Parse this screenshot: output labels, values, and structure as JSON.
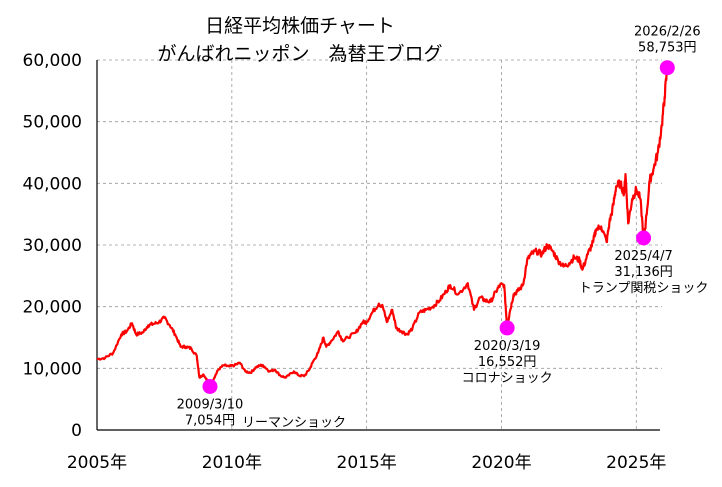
{
  "chart_data": {
    "type": "line",
    "title_lines": [
      "日経平均株価チャート",
      "がんばれニッポン　為替王ブログ"
    ],
    "ylim": [
      0,
      60000
    ],
    "y_ticks": [
      {
        "value": 0,
        "label": "0"
      },
      {
        "value": 10000,
        "label": "10,000"
      },
      {
        "value": 20000,
        "label": "20,000"
      },
      {
        "value": 30000,
        "label": "30,000"
      },
      {
        "value": 40000,
        "label": "40,000"
      },
      {
        "value": 50000,
        "label": "50,000"
      },
      {
        "value": 60000,
        "label": "60,000"
      }
    ],
    "xlim": [
      2005.0,
      2026.25
    ],
    "x_ticks": [
      {
        "value": 2005,
        "label": "2005年"
      },
      {
        "value": 2010,
        "label": "2010年"
      },
      {
        "value": 2015,
        "label": "2015年"
      },
      {
        "value": 2020,
        "label": "2020年"
      },
      {
        "value": 2025,
        "label": "2025年"
      }
    ],
    "line_color": "#ff0000",
    "marker_color": "#ff00ff",
    "series": [
      {
        "name": "日経平均株価",
        "x": [
          2005.0,
          2005.3,
          2005.6,
          2005.9,
          2006.1,
          2006.3,
          2006.45,
          2006.7,
          2006.9,
          2007.1,
          2007.3,
          2007.5,
          2007.7,
          2007.9,
          2008.1,
          2008.3,
          2008.5,
          2008.7,
          2008.8,
          2008.95,
          2009.1,
          2009.19,
          2009.35,
          2009.5,
          2009.7,
          2009.9,
          2010.1,
          2010.3,
          2010.5,
          2010.7,
          2010.9,
          2011.1,
          2011.2,
          2011.4,
          2011.6,
          2011.8,
          2012.0,
          2012.3,
          2012.5,
          2012.7,
          2012.9,
          2013.0,
          2013.2,
          2013.4,
          2013.5,
          2013.7,
          2013.95,
          2014.1,
          2014.3,
          2014.6,
          2014.85,
          2015.0,
          2015.2,
          2015.45,
          2015.6,
          2015.75,
          2015.95,
          2016.1,
          2016.3,
          2016.5,
          2016.7,
          2016.95,
          2017.2,
          2017.45,
          2017.7,
          2017.95,
          2018.1,
          2018.4,
          2018.75,
          2018.98,
          2019.2,
          2019.4,
          2019.6,
          2019.8,
          2019.95,
          2020.1,
          2020.21,
          2020.3,
          2020.45,
          2020.6,
          2020.8,
          2020.95,
          2021.1,
          2021.3,
          2021.5,
          2021.7,
          2021.9,
          2022.1,
          2022.3,
          2022.5,
          2022.7,
          2022.9,
          2023.0,
          2023.2,
          2023.4,
          2023.5,
          2023.7,
          2023.9,
          2024.0,
          2024.15,
          2024.25,
          2024.4,
          2024.55,
          2024.6,
          2024.7,
          2024.85,
          2025.0,
          2025.15,
          2025.27,
          2025.35,
          2025.5,
          2025.65,
          2025.8,
          2025.95,
          2026.05,
          2026.15
        ],
        "y": [
          11500,
          11700,
          12500,
          15500,
          16000,
          17300,
          15500,
          15800,
          17000,
          17200,
          17500,
          18200,
          17000,
          15500,
          13500,
          13500,
          13200,
          12000,
          8500,
          9000,
          8000,
          7054,
          8500,
          9800,
          10500,
          10300,
          10500,
          10900,
          9500,
          9300,
          10200,
          10500,
          10300,
          9500,
          9800,
          8800,
          8500,
          9500,
          8800,
          8800,
          10000,
          11000,
          12500,
          15000,
          13500,
          14500,
          16000,
          14500,
          15000,
          15800,
          17500,
          17500,
          19000,
          20500,
          20000,
          17500,
          19500,
          16500,
          16000,
          15500,
          16500,
          19000,
          19500,
          20000,
          21000,
          22500,
          23500,
          22000,
          23800,
          19500,
          21500,
          21000,
          20800,
          22500,
          23500,
          23500,
          16552,
          19000,
          22000,
          22500,
          23500,
          27500,
          28500,
          29000,
          28500,
          30000,
          29000,
          27500,
          26500,
          27000,
          28000,
          27500,
          26000,
          28500,
          30500,
          32500,
          33000,
          30500,
          33500,
          36500,
          39500,
          40000,
          38500,
          41500,
          33500,
          37500,
          39000,
          37500,
          31136,
          33500,
          40500,
          42500,
          45000,
          49500,
          54000,
          58753
        ]
      }
    ],
    "annotations": [
      {
        "x": 2009.19,
        "y": 7054,
        "lines": [
          "2009/3/10",
          "7,054円"
        ],
        "label_side": "below",
        "extra": "リーマンショック"
      },
      {
        "x": 2020.21,
        "y": 16552,
        "lines": [
          "2020/3/19",
          "16,552円",
          "コロナショック"
        ],
        "label_side": "below"
      },
      {
        "x": 2025.27,
        "y": 31136,
        "lines": [
          "2025/4/7",
          "31,136円",
          "トランプ関税ショック"
        ],
        "label_side": "below"
      },
      {
        "x": 2026.15,
        "y": 58753,
        "lines": [
          "2026/2/26",
          "58,753円"
        ],
        "label_side": "above"
      }
    ]
  }
}
